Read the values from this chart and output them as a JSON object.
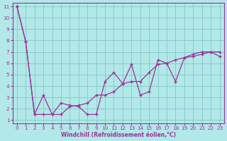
{
  "xlabel": "Windchill (Refroidissement éolien,°C)",
  "bg_color": "#b2e8e8",
  "line_color": "#993399",
  "grid_color": "#88cccc",
  "x_data1": [
    0,
    1,
    2,
    3,
    4,
    5,
    6,
    7,
    8,
    9,
    10,
    11,
    12,
    13,
    14,
    15,
    16,
    17,
    18,
    19,
    20,
    21,
    22,
    23
  ],
  "y_data1": [
    11.0,
    7.9,
    1.5,
    3.2,
    1.5,
    2.5,
    2.3,
    2.2,
    1.5,
    1.5,
    4.4,
    5.2,
    4.2,
    5.9,
    3.2,
    3.5,
    6.3,
    6.0,
    4.4,
    6.5,
    6.8,
    7.0,
    7.0,
    6.6
  ],
  "x_data2": [
    0,
    1,
    2,
    3,
    4,
    5,
    6,
    7,
    8,
    9,
    10,
    11,
    12,
    13,
    14,
    15,
    16,
    17,
    18,
    19,
    20,
    21,
    22,
    23
  ],
  "y_data2": [
    11.0,
    7.9,
    1.5,
    1.5,
    1.5,
    1.5,
    2.2,
    2.3,
    2.5,
    3.2,
    3.2,
    3.5,
    4.2,
    4.4,
    4.4,
    5.2,
    5.9,
    6.0,
    6.3,
    6.5,
    6.6,
    6.8,
    7.0,
    7.0
  ],
  "xlim": [
    0,
    23
  ],
  "ylim": [
    1,
    11
  ],
  "xticks": [
    0,
    1,
    2,
    3,
    4,
    5,
    6,
    7,
    8,
    9,
    10,
    11,
    12,
    13,
    14,
    15,
    16,
    17,
    18,
    19,
    20,
    21,
    22,
    23
  ],
  "yticks": [
    1,
    2,
    3,
    4,
    5,
    6,
    7,
    8,
    9,
    10,
    11
  ],
  "xlabel_fontsize": 5.5,
  "tick_fontsize": 5.2
}
